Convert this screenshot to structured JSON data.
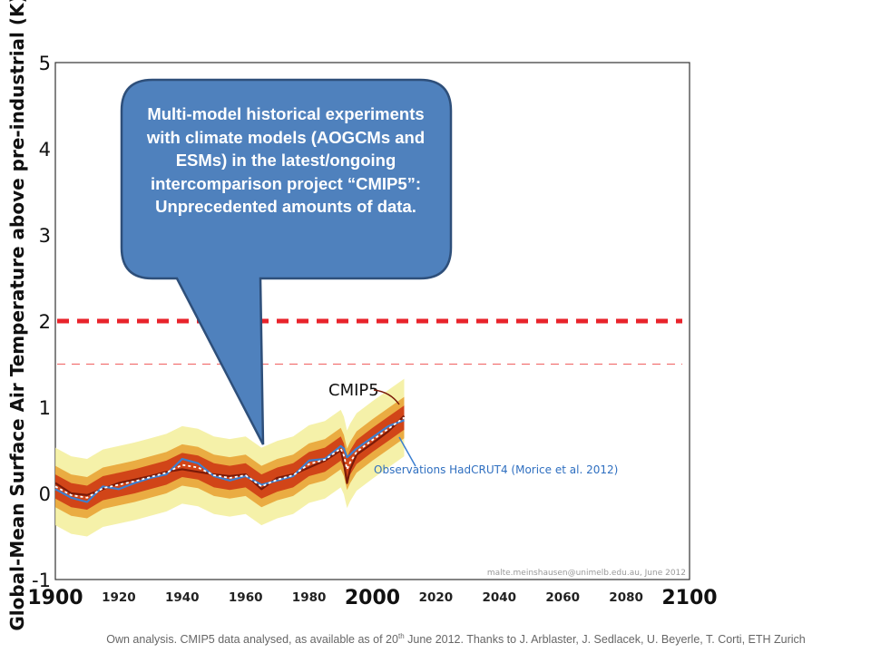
{
  "chart_data": {
    "type": "line",
    "ylabel": "Global-Mean Surface Air Temperature above pre-industrial (K)",
    "xlim": [
      1900,
      2100
    ],
    "ylim": [
      -1,
      5
    ],
    "y_ticks": [
      "5",
      "4",
      "3",
      "2",
      "1",
      "0",
      "-1"
    ],
    "x_major_ticks": [
      "1900",
      "2000",
      "2100"
    ],
    "x_minor_ticks": [
      "1920",
      "1940",
      "1960",
      "1980",
      "2020",
      "2040",
      "2060",
      "2080"
    ],
    "threshold_lines": [
      {
        "y": 2.0,
        "style": "thick dashed",
        "color": "#e8232b"
      },
      {
        "y": 1.5,
        "style": "thin dashed",
        "color": "#ee5050"
      }
    ],
    "years": [
      1900,
      1905,
      1910,
      1915,
      1920,
      1925,
      1930,
      1935,
      1940,
      1945,
      1950,
      1955,
      1960,
      1965,
      1970,
      1975,
      1980,
      1985,
      1990,
      1991,
      1992,
      1993,
      1995,
      2000,
      2005,
      2010
    ],
    "series": [
      {
        "name": "CMIP5",
        "values": [
          0.12,
          0.0,
          -0.02,
          0.05,
          0.12,
          0.16,
          0.2,
          0.25,
          0.28,
          0.25,
          0.22,
          0.2,
          0.22,
          0.05,
          0.18,
          0.22,
          0.3,
          0.38,
          0.5,
          0.35,
          0.12,
          0.28,
          0.45,
          0.58,
          0.72,
          0.9
        ]
      },
      {
        "name": "Observations HadCRUT4 (Morice et al. 2012)",
        "values": [
          0.05,
          -0.05,
          -0.1,
          0.08,
          0.05,
          0.12,
          0.18,
          0.22,
          0.4,
          0.35,
          0.2,
          0.15,
          0.2,
          0.1,
          0.15,
          0.2,
          0.38,
          0.4,
          0.55,
          0.52,
          0.42,
          0.45,
          0.52,
          0.65,
          0.78,
          0.85
        ]
      },
      {
        "name": "",
        "values": [
          0.08,
          -0.02,
          -0.05,
          0.06,
          0.1,
          0.14,
          0.19,
          0.24,
          0.33,
          0.3,
          0.21,
          0.18,
          0.21,
          0.08,
          0.16,
          0.21,
          0.34,
          0.39,
          0.52,
          0.44,
          0.28,
          0.36,
          0.48,
          0.62,
          0.75,
          0.88
        ]
      }
    ],
    "envelopes": [
      {
        "color": "#f3ee9a",
        "half_width": 0.45
      },
      {
        "color": "#e8a030",
        "half_width": 0.24
      },
      {
        "color": "#cc3311",
        "half_width": 0.14
      }
    ],
    "annotations": {
      "cmip5_label": "CMIP5",
      "observations_label": "Observations HadCRUT4 (Morice et al. 2012)",
      "credit": "malte.meinshausen@unimelb.edu.au, June 2012"
    }
  },
  "callout": {
    "text": "Multi-model historical experiments with climate models (AOGCMs and ESMs) in the latest/ongoing intercomparison project “CMIP5”: Unprecedented amounts of data."
  },
  "footer": {
    "before": "Own analysis. CMIP5 data analysed, as available as of 20",
    "sup": "th",
    "after": " June 2012. Thanks to J. Arblaster, J. Sedlacek, U. Beyerle, T. Corti, ETH Zurich"
  },
  "colors": {
    "callout_fill": "#4f81bd",
    "callout_border": "#2e4f7a",
    "threshold": "#e8232b",
    "observations": "#3b7fd0",
    "cmip5_mean": "#7a1a08"
  }
}
